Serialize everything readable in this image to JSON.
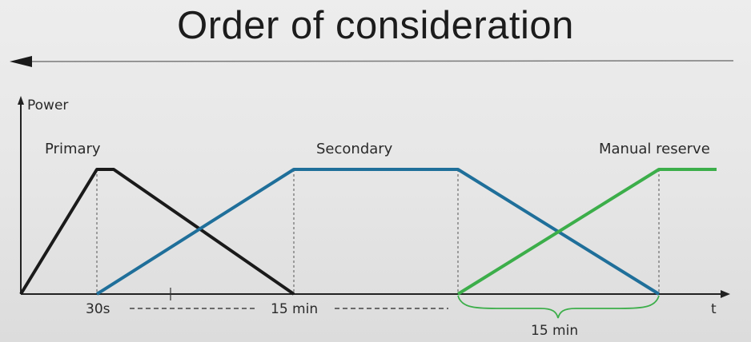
{
  "title": "Order of consideration",
  "axes": {
    "y_label": "Power",
    "x_label": "t"
  },
  "curve_labels": {
    "primary": "Primary",
    "secondary": "Secondary",
    "manual_reserve": "Manual reserve"
  },
  "time_markers": {
    "t1": "30s",
    "t2": "15 min",
    "brace": "15 min"
  },
  "colors": {
    "primary": "#1a1a1a",
    "secondary": "#1f6f9a",
    "manual_reserve": "#3cae4a",
    "axis": "#222222",
    "guide": "#555555"
  }
}
